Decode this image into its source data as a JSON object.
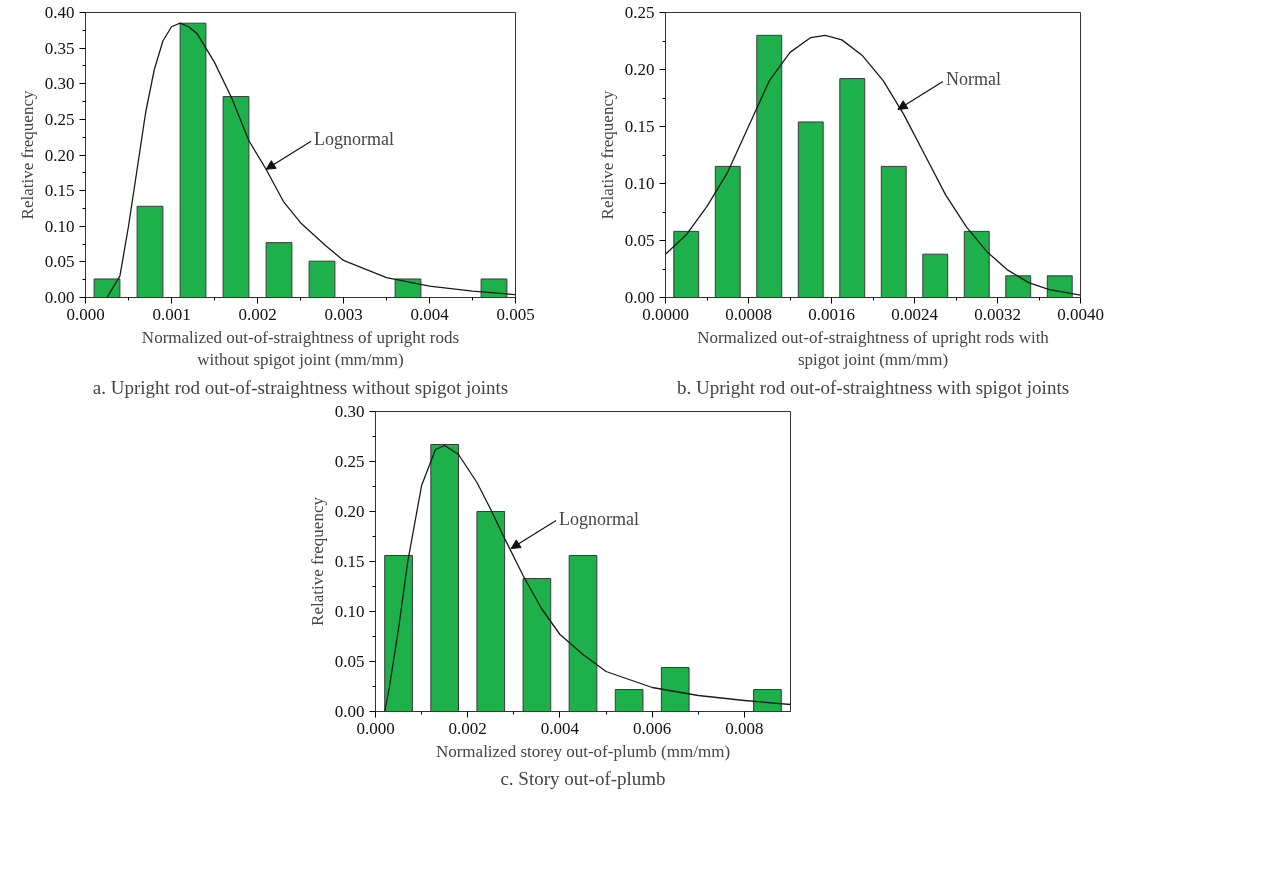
{
  "chart_data": [
    {
      "type": "bar",
      "title": "a. Upright rod out-of-straightness without spigot joints",
      "xlabel": "Normalized out-of-straightness of upright rods without spigot joint (mm/mm)",
      "ylabel": "Relative frequency",
      "xlim": [
        0,
        0.005
      ],
      "ylim": [
        0,
        0.4
      ],
      "xticks": [
        {
          "value": 0,
          "label": "0.000"
        },
        {
          "value": 0.001,
          "label": "0.001"
        },
        {
          "value": 0.002,
          "label": "0.002"
        },
        {
          "value": 0.003,
          "label": "0.003"
        },
        {
          "value": 0.004,
          "label": "0.004"
        },
        {
          "value": 0.005,
          "label": "0.005"
        }
      ],
      "yticks": [
        {
          "value": 0,
          "label": "0.00"
        },
        {
          "value": 0.05,
          "label": "0.05"
        },
        {
          "value": 0.1,
          "label": "0.10"
        },
        {
          "value": 0.15,
          "label": "0.15"
        },
        {
          "value": 0.2,
          "label": "0.20"
        },
        {
          "value": 0.25,
          "label": "0.25"
        },
        {
          "value": 0.3,
          "label": "0.30"
        },
        {
          "value": 0.35,
          "label": "0.35"
        },
        {
          "value": 0.4,
          "label": "0.40"
        }
      ],
      "grid": false,
      "series": [
        {
          "color": "#1db04b",
          "x": [
            0.00025,
            0.00075,
            0.00125,
            0.00175,
            0.00225,
            0.00275,
            0.00375,
            0.00475
          ],
          "values": [
            0.026,
            0.128,
            0.385,
            0.282,
            0.077,
            0.051,
            0.026,
            0.026
          ]
        },
        {
          "type": "line",
          "color": "#1a1a1a",
          "x": [
            0.00025,
            0.0004,
            0.0005,
            0.0006,
            0.0007,
            0.0008,
            0.0009,
            0.001,
            0.0011,
            0.0012,
            0.0013,
            0.0015,
            0.0017,
            0.0019,
            0.0021,
            0.0023,
            0.0025,
            0.0028,
            0.003,
            0.0035,
            0.004,
            0.0045,
            0.005
          ],
          "values": [
            0,
            0.03,
            0.1,
            0.18,
            0.26,
            0.32,
            0.36,
            0.38,
            0.385,
            0.38,
            0.37,
            0.33,
            0.28,
            0.22,
            0.18,
            0.135,
            0.105,
            0.072,
            0.052,
            0.028,
            0.016,
            0.009,
            0.004
          ]
        }
      ],
      "annotations": [
        {
          "text": "Lognormal",
          "x": 0.0021,
          "y": 0.18
        }
      ]
    },
    {
      "type": "bar",
      "title": "b. Upright rod out-of-straightness with spigot joints",
      "xlabel": "Normalized out-of-straightness of upright rods with spigot joint (mm/mm)",
      "ylabel": "Relative frequency",
      "xlim": [
        0,
        0.004
      ],
      "ylim": [
        0,
        0.25
      ],
      "xticks": [
        {
          "value": 0,
          "label": "0.0000"
        },
        {
          "value": 0.0008,
          "label": "0.0008"
        },
        {
          "value": 0.0016,
          "label": "0.0016"
        },
        {
          "value": 0.0024,
          "label": "0.0024"
        },
        {
          "value": 0.0032,
          "label": "0.0032"
        },
        {
          "value": 0.004,
          "label": "0.0040"
        }
      ],
      "yticks": [
        {
          "value": 0,
          "label": "0.00"
        },
        {
          "value": 0.05,
          "label": "0.05"
        },
        {
          "value": 0.1,
          "label": "0.10"
        },
        {
          "value": 0.15,
          "label": "0.15"
        },
        {
          "value": 0.2,
          "label": "0.20"
        },
        {
          "value": 0.25,
          "label": "0.25"
        }
      ],
      "grid": false,
      "series": [
        {
          "color": "#1db04b",
          "x": [
            0.0002,
            0.0006,
            0.001,
            0.0014,
            0.0018,
            0.0022,
            0.0026,
            0.003,
            0.0034,
            0.0038
          ],
          "values": [
            0.058,
            0.115,
            0.23,
            0.154,
            0.192,
            0.115,
            0.038,
            0.058,
            0.019,
            0.019
          ]
        },
        {
          "type": "line",
          "color": "#1a1a1a",
          "x": [
            0,
            0.0002,
            0.0004,
            0.0006,
            0.0008,
            0.001,
            0.0012,
            0.0014,
            0.00154,
            0.0017,
            0.0019,
            0.0021,
            0.0023,
            0.0025,
            0.0027,
            0.0029,
            0.0031,
            0.0033,
            0.0035,
            0.0037,
            0.004
          ],
          "values": [
            0.038,
            0.055,
            0.08,
            0.11,
            0.15,
            0.19,
            0.215,
            0.228,
            0.23,
            0.226,
            0.212,
            0.19,
            0.16,
            0.125,
            0.09,
            0.062,
            0.04,
            0.024,
            0.013,
            0.007,
            0.002
          ]
        }
      ],
      "annotations": [
        {
          "text": "Normal",
          "x": 0.00224,
          "y": 0.165
        }
      ]
    },
    {
      "type": "bar",
      "title": "c. Story out-of-plumb",
      "xlabel": "Normalized storey out-of-plumb (mm/mm)",
      "ylabel": "Relative frequency",
      "xlim": [
        0,
        0.009
      ],
      "ylim": [
        0,
        0.3
      ],
      "xticks": [
        {
          "value": 0,
          "label": "0.000"
        },
        {
          "value": 0.002,
          "label": "0.002"
        },
        {
          "value": 0.004,
          "label": "0.004"
        },
        {
          "value": 0.006,
          "label": "0.006"
        },
        {
          "value": 0.008,
          "label": "0.008"
        }
      ],
      "yticks": [
        {
          "value": 0,
          "label": "0.00"
        },
        {
          "value": 0.05,
          "label": "0.05"
        },
        {
          "value": 0.1,
          "label": "0.10"
        },
        {
          "value": 0.15,
          "label": "0.15"
        },
        {
          "value": 0.2,
          "label": "0.20"
        },
        {
          "value": 0.25,
          "label": "0.25"
        },
        {
          "value": 0.3,
          "label": "0.30"
        }
      ],
      "grid": false,
      "series": [
        {
          "color": "#1db04b",
          "x": [
            0.0005,
            0.0015,
            0.0025,
            0.0035,
            0.0045,
            0.0055,
            0.0065,
            0.0085
          ],
          "values": [
            0.156,
            0.267,
            0.2,
            0.133,
            0.156,
            0.022,
            0.044,
            0.022
          ]
        },
        {
          "type": "line",
          "color": "#1a1a1a",
          "x": [
            0.0002,
            0.0003,
            0.0005,
            0.0007,
            0.001,
            0.0013,
            0.0015,
            0.0018,
            0.0022,
            0.0025,
            0.0028,
            0.0032,
            0.0036,
            0.004,
            0.0045,
            0.005,
            0.006,
            0.007,
            0.008,
            0.009
          ],
          "values": [
            0,
            0.024,
            0.083,
            0.15,
            0.226,
            0.262,
            0.266,
            0.257,
            0.229,
            0.202,
            0.173,
            0.136,
            0.103,
            0.077,
            0.057,
            0.04,
            0.024,
            0.016,
            0.011,
            0.007
          ]
        }
      ],
      "annotations": [
        {
          "text": "Lognormal",
          "x": 0.00294,
          "y": 0.163
        }
      ]
    }
  ]
}
